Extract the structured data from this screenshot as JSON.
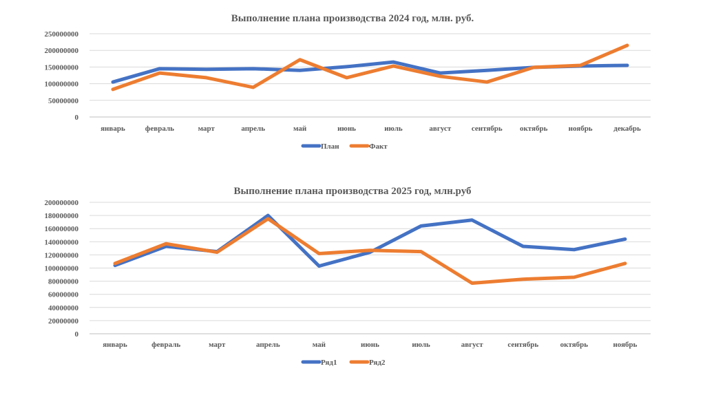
{
  "chart_data": [
    {
      "type": "line",
      "title": "Выполнение плана производства 2024 год, млн. руб.",
      "categories": [
        "январь",
        "февраль",
        "март",
        "апрель",
        "май",
        "июнь",
        "июль",
        "август",
        "сентябрь",
        "октябрь",
        "ноябрь",
        "декабрь"
      ],
      "ylim": [
        0,
        250000000
      ],
      "yticks": [
        "0",
        "50000000",
        "100000000",
        "150000000",
        "200000000",
        "250000000"
      ],
      "grid": true,
      "legend": "bottom",
      "series": [
        {
          "name": "План",
          "color": "#4472C4",
          "values": [
            105000000,
            145000000,
            143000000,
            145000000,
            140000000,
            151000000,
            165000000,
            132000000,
            140000000,
            149000000,
            153000000,
            155000000
          ]
        },
        {
          "name": "Факт",
          "color": "#ED7D31",
          "values": [
            83000000,
            132000000,
            118000000,
            89000000,
            172000000,
            118000000,
            153000000,
            122000000,
            105000000,
            149000000,
            155000000,
            215000000
          ]
        }
      ]
    },
    {
      "type": "line",
      "title": "Выполнение плана производства 2025 год, млн.руб",
      "categories": [
        "январь",
        "февраль",
        "март",
        "апрель",
        "май",
        "июнь",
        "июль",
        "август",
        "сентябрь",
        "октябрь",
        "ноябрь"
      ],
      "ylim": [
        0,
        200000000
      ],
      "yticks": [
        "0",
        "20000000",
        "40000000",
        "60000000",
        "80000000",
        "100000000",
        "120000000",
        "140000000",
        "160000000",
        "180000000",
        "200000000"
      ],
      "grid": true,
      "legend": "bottom",
      "series": [
        {
          "name": "Ряд1",
          "color": "#4472C4",
          "values": [
            104000000,
            133000000,
            125000000,
            180000000,
            103000000,
            124000000,
            164000000,
            173000000,
            133000000,
            128000000,
            144000000
          ]
        },
        {
          "name": "Ряд2",
          "color": "#ED7D31",
          "values": [
            107000000,
            137000000,
            124000000,
            175000000,
            122000000,
            127000000,
            125000000,
            77000000,
            83000000,
            86000000,
            107000000
          ]
        }
      ]
    }
  ]
}
